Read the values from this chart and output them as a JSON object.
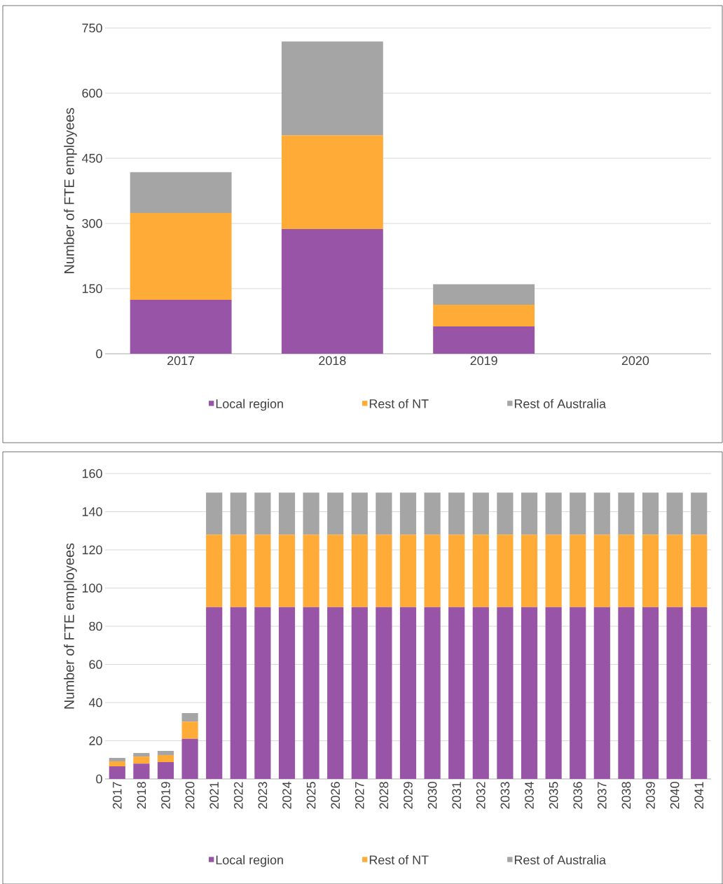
{
  "chart_data": [
    {
      "type": "bar",
      "stacked": true,
      "ylabel": "Number of FTE employees",
      "categories": [
        "2017",
        "2018",
        "2019",
        "2020"
      ],
      "series": [
        {
          "name": "Local region",
          "color": "#9855a8",
          "values": [
            124,
            287,
            63,
            0
          ]
        },
        {
          "name": "Rest of NT",
          "color": "#ffab38",
          "values": [
            200,
            216,
            50,
            0
          ]
        },
        {
          "name": "Rest of Australia",
          "color": "#a5a5a5",
          "values": [
            94,
            216,
            47,
            0
          ]
        }
      ],
      "ylim": [
        0,
        750
      ],
      "yticks": [
        0,
        150,
        300,
        450,
        600,
        750
      ],
      "grid": "y",
      "legend": "bottom"
    },
    {
      "type": "bar",
      "stacked": true,
      "ylabel": "Number of FTE employees",
      "categories": [
        "2017",
        "2018",
        "2019",
        "2020",
        "2021",
        "2022",
        "2023",
        "2024",
        "2025",
        "2026",
        "2027",
        "2028",
        "2029",
        "2030",
        "2031",
        "2032",
        "2033",
        "2034",
        "2035",
        "2036",
        "2037",
        "2038",
        "2039",
        "2040",
        "2041"
      ],
      "series": [
        {
          "name": "Local region",
          "color": "#9855a8",
          "values": [
            6.6,
            8,
            8.8,
            21,
            90,
            90,
            90,
            90,
            90,
            90,
            90,
            90,
            90,
            90,
            90,
            90,
            90,
            90,
            90,
            90,
            90,
            90,
            90,
            90,
            90
          ]
        },
        {
          "name": "Rest of NT",
          "color": "#ffab38",
          "values": [
            2.6,
            3.7,
            3.7,
            9,
            38,
            38,
            38,
            38,
            38,
            38,
            38,
            38,
            38,
            38,
            38,
            38,
            38,
            38,
            38,
            38,
            38,
            38,
            38,
            38,
            38
          ]
        },
        {
          "name": "Rest of Australia",
          "color": "#a5a5a5",
          "values": [
            1.8,
            1.9,
            2.2,
            4.5,
            22,
            22,
            22,
            22,
            22,
            22,
            22,
            22,
            22,
            22,
            22,
            22,
            22,
            22,
            22,
            22,
            22,
            22,
            22,
            22,
            22
          ]
        }
      ],
      "ylim": [
        0,
        160
      ],
      "yticks": [
        0,
        20,
        40,
        60,
        80,
        100,
        120,
        140,
        160
      ],
      "grid": "y",
      "legend": "bottom"
    }
  ]
}
